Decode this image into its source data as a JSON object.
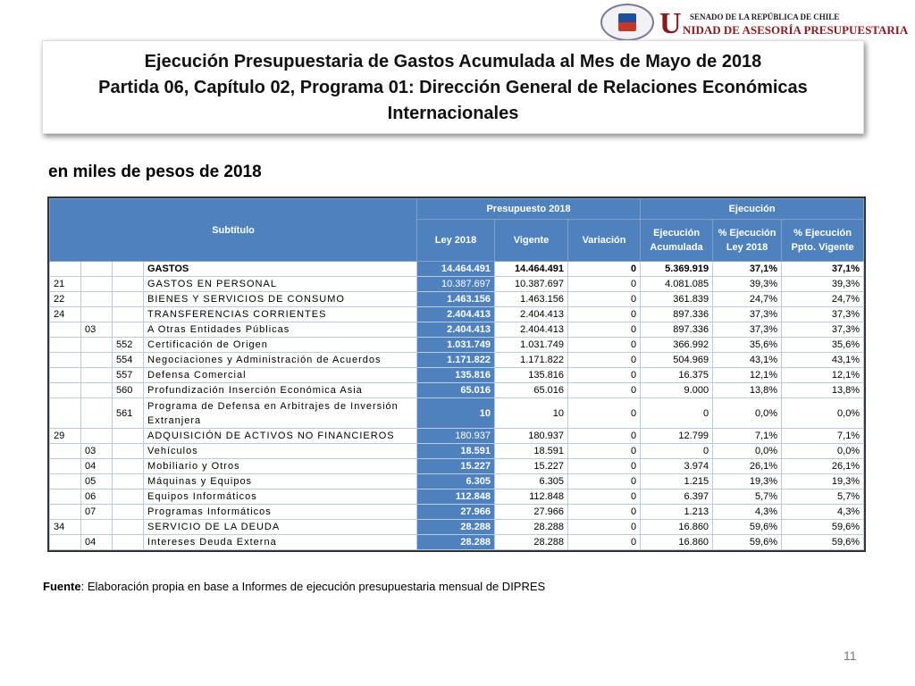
{
  "header": {
    "logo_top": "SENADO DE LA REPÚBLICA DE CHILE",
    "logo_initial": "U",
    "logo_main": "NIDAD DE ASESORÍA PRESUPUESTARIA",
    "title_line1": "Ejecución Presupuestaria de Gastos Acumulada al Mes de Mayo de 2018",
    "title_line2": "Partida 06, Capítulo 02, Programa 01: Dirección General de Relaciones Económicas Internacionales"
  },
  "subtitle": "en miles de pesos de 2018",
  "table": {
    "head": {
      "subtitulo": "Subtítulo",
      "presupuesto": "Presupuesto 2018",
      "ejecucion": "Ejecución",
      "columns": [
        "Ley 2018",
        "Vigente",
        "Variación",
        "Ejecución Acumulada",
        "% Ejecución Ley 2018",
        "% Ejecución Ppto. Vigente"
      ]
    },
    "rows": [
      {
        "name": "GASTOS",
        "values": [
          "14.464.491",
          "14.464.491",
          "0",
          "5.369.919",
          "37,1%",
          "37,1%"
        ]
      },
      {
        "subtitulo": "21",
        "name": "GASTOS EN PERSONAL",
        "values": [
          "10.387.697",
          "10.387.697",
          "0",
          "4.081.085",
          "39,3%",
          "39,3%"
        ]
      },
      {
        "subtitulo": "22",
        "name": "BIENES Y SERVICIOS DE CONSUMO",
        "values": [
          "1.463.156",
          "1.463.156",
          "0",
          "361.839",
          "24,7%",
          "24,7%"
        ]
      },
      {
        "subtitulo": "24",
        "name": "TRANSFERENCIAS CORRIENTES",
        "values": [
          "2.404.413",
          "2.404.413",
          "0",
          "897.336",
          "37,3%",
          "37,3%"
        ]
      },
      {
        "item": "03",
        "name": "A Otras Entidades Públicas",
        "values": [
          "2.404.413",
          "2.404.413",
          "0",
          "897.336",
          "37,3%",
          "37,3%"
        ]
      },
      {
        "asignacion": "552",
        "name": "Certificación de Origen",
        "values": [
          "1.031.749",
          "1.031.749",
          "0",
          "366.992",
          "35,6%",
          "35,6%"
        ]
      },
      {
        "asignacion": "554",
        "name": "Negociaciones y Administración de Acuerdos",
        "values": [
          "1.171.822",
          "1.171.822",
          "0",
          "504.969",
          "43,1%",
          "43,1%"
        ]
      },
      {
        "asignacion": "557",
        "name": "Defensa Comercial",
        "values": [
          "135.816",
          "135.816",
          "0",
          "16.375",
          "12,1%",
          "12,1%"
        ]
      },
      {
        "asignacion": "560",
        "name": "Profundización Inserción Económica Asia",
        "values": [
          "65.016",
          "65.016",
          "0",
          "9.000",
          "13,8%",
          "13,8%"
        ]
      },
      {
        "asignacion": "561",
        "name": "Programa de Defensa en Arbitrajes de Inversión Extranjera",
        "values": [
          "10",
          "10",
          "0",
          "0",
          "0,0%",
          "0,0%"
        ]
      },
      {
        "subtitulo": "29",
        "name": "ADQUISICIÓN DE ACTIVOS NO FINANCIEROS",
        "values": [
          "180.937",
          "180.937",
          "0",
          "12.799",
          "7,1%",
          "7,1%"
        ]
      },
      {
        "item": "03",
        "name": "Vehículos",
        "values": [
          "18.591",
          "18.591",
          "0",
          "0",
          "0,0%",
          "0,0%"
        ]
      },
      {
        "item": "04",
        "name": "Mobiliario y Otros",
        "values": [
          "15.227",
          "15.227",
          "0",
          "3.974",
          "26,1%",
          "26,1%"
        ]
      },
      {
        "item": "05",
        "name": "Máquinas y Equipos",
        "values": [
          "6.305",
          "6.305",
          "0",
          "1.215",
          "19,3%",
          "19,3%"
        ]
      },
      {
        "item": "06",
        "name": "Equipos Informáticos",
        "values": [
          "112.848",
          "112.848",
          "0",
          "6.397",
          "5,7%",
          "5,7%"
        ]
      },
      {
        "item": "07",
        "name": "Programas Informáticos",
        "values": [
          "27.966",
          "27.966",
          "0",
          "1.213",
          "4,3%",
          "4,3%"
        ]
      },
      {
        "subtitulo": "34",
        "name": "SERVICIO DE LA DEUDA",
        "values": [
          "28.288",
          "28.288",
          "0",
          "16.860",
          "59,6%",
          "59,6%"
        ]
      },
      {
        "item": "04",
        "name": "Intereses Deuda Externa",
        "values": [
          "28.288",
          "28.288",
          "0",
          "16.860",
          "59,6%",
          "59,6%"
        ]
      }
    ]
  },
  "footer": {
    "source_label": "Fuente",
    "source_text": ": Elaboración propia en base  a Informes de ejecución presupuestaria mensual de DIPRES",
    "page_number": "11"
  }
}
